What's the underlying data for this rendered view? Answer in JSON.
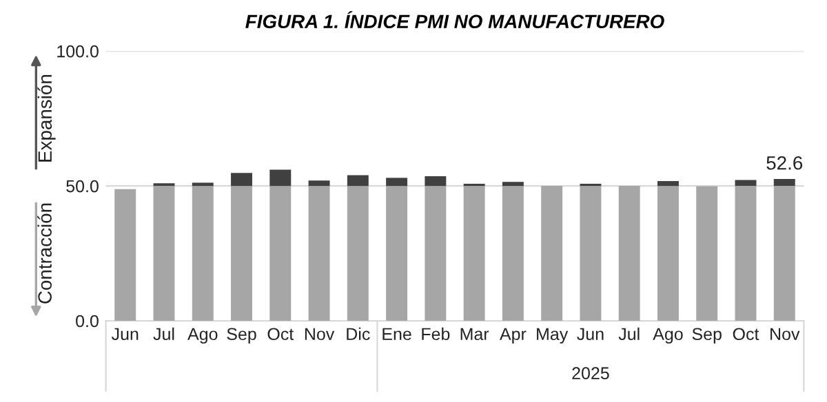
{
  "chart_data": {
    "type": "bar",
    "stacked": true,
    "title": "FIGURA 1. ÍNDICE PMI NO MANUFACTURERO",
    "xlabel": "2025",
    "categories": [
      "Jun",
      "Jul",
      "Ago",
      "Sep",
      "Oct",
      "Nov",
      "Dic",
      "Ene",
      "Feb",
      "Mar",
      "Apr",
      "May",
      "Jun",
      "Jul",
      "Ago",
      "Sep",
      "Oct",
      "Nov"
    ],
    "series": [
      {
        "color": "#a6a6a6",
        "values": [
          48.8,
          50,
          50,
          50,
          50,
          50,
          50,
          50,
          50,
          50,
          50,
          50,
          50,
          50,
          50,
          49.9,
          50,
          50
        ]
      },
      {
        "color": "#404040",
        "values": [
          0,
          1.0,
          1.2,
          4.8,
          6.0,
          2.0,
          4.0,
          3.0,
          3.6,
          0.8,
          1.5,
          0,
          0.8,
          0,
          1.8,
          0,
          2.2,
          2.6
        ]
      }
    ],
    "totals": [
      null,
      null,
      null,
      null,
      null,
      null,
      null,
      null,
      null,
      null,
      null,
      null,
      null,
      null,
      null,
      null,
      null,
      "52.6"
    ],
    "ylim": [
      0,
      100
    ],
    "yticks": [
      {
        "value": 0,
        "label": "0.0"
      },
      {
        "value": 50,
        "label": "50.0"
      },
      {
        "value": 100,
        "label": "100.0"
      }
    ],
    "grid": "y",
    "legend": false,
    "annotations": [
      "Expansión",
      "Contracción"
    ]
  }
}
